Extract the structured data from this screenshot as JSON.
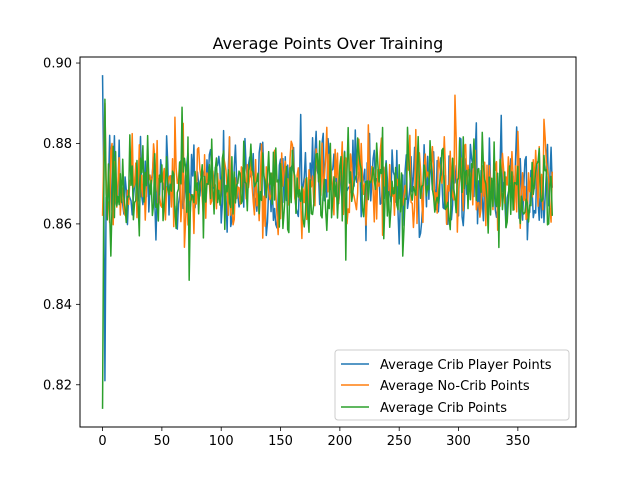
{
  "chart_data": {
    "type": "line",
    "title": "Average Points Over Training",
    "xlabel": "",
    "ylabel": "",
    "xlim": [
      -19,
      399
    ],
    "ylim": [
      0.8095,
      0.9015
    ],
    "x_ticks": [
      0,
      50,
      100,
      150,
      200,
      250,
      300,
      350
    ],
    "y_ticks": [
      0.82,
      0.84,
      0.86,
      0.88,
      0.9
    ],
    "y_tick_labels": [
      "0.82",
      "0.84",
      "0.86",
      "0.88",
      "0.90"
    ],
    "grid": false,
    "legend_position": "lower-right",
    "n_points": 380,
    "series": [
      {
        "name": "Average Crib Player Points",
        "color": "#1f77b4",
        "anchors": [
          [
            0,
            0.897
          ],
          [
            2,
            0.821
          ],
          [
            4,
            0.865
          ],
          [
            6,
            0.882
          ],
          [
            9,
            0.87
          ],
          [
            40,
            0.869
          ],
          [
            45,
            0.856
          ],
          [
            70,
            0.872
          ],
          [
            133,
            0.88
          ],
          [
            180,
            0.883
          ],
          [
            250,
            0.855
          ],
          [
            261,
            0.868
          ],
          [
            300,
            0.862
          ],
          [
            336,
            0.887
          ],
          [
            379,
            0.869
          ]
        ],
        "baseline": 0.8695,
        "amplitude": 0.0062,
        "seed": 11
      },
      {
        "name": "Average No-Crib Points",
        "color": "#ff7f0e",
        "anchors": [
          [
            0,
            0.862
          ],
          [
            2,
            0.89
          ],
          [
            4,
            0.866
          ],
          [
            8,
            0.88
          ],
          [
            68,
            0.885
          ],
          [
            75,
            0.866
          ],
          [
            189,
            0.884
          ],
          [
            297,
            0.892
          ],
          [
            300,
            0.868
          ],
          [
            372,
            0.886
          ],
          [
            379,
            0.873
          ]
        ],
        "baseline": 0.8698,
        "amplitude": 0.006,
        "seed": 23
      },
      {
        "name": "Average Crib Points",
        "color": "#2ca02c",
        "anchors": [
          [
            0,
            0.814
          ],
          [
            1,
            0.866
          ],
          [
            2,
            0.891
          ],
          [
            4,
            0.861
          ],
          [
            7,
            0.852
          ],
          [
            67,
            0.889
          ],
          [
            73,
            0.846
          ],
          [
            88,
            0.87
          ],
          [
            205,
            0.851
          ],
          [
            253,
            0.852
          ],
          [
            257,
            0.884
          ],
          [
            310,
            0.866
          ],
          [
            379,
            0.862
          ]
        ],
        "baseline": 0.869,
        "amplitude": 0.0058,
        "seed": 37
      }
    ]
  }
}
